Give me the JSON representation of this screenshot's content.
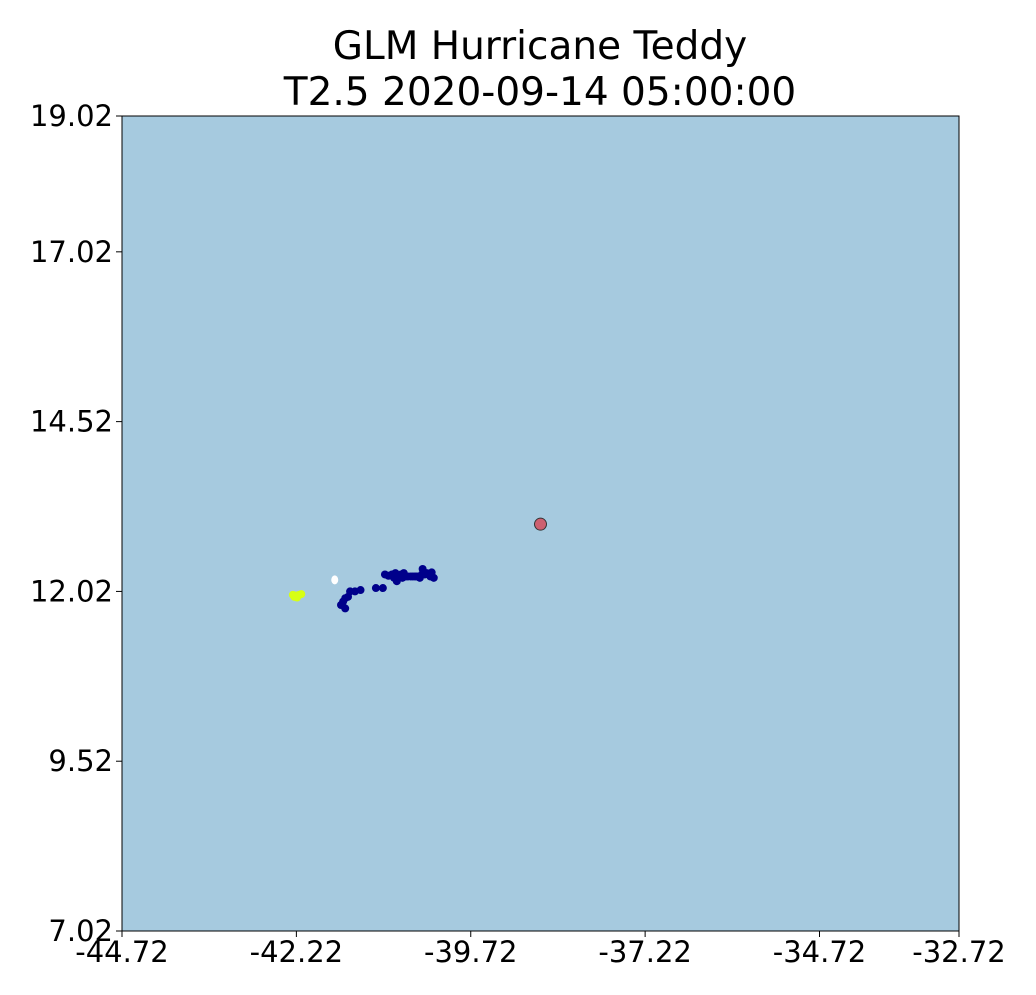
{
  "chart_data": {
    "type": "scatter",
    "title": "GLM Hurricane Teddy",
    "subtitle": "T2.5 2020-09-14 05:00:00",
    "xlabel": "",
    "ylabel": "",
    "xlim": [
      -44.72,
      -32.72
    ],
    "ylim": [
      7.02,
      19.02
    ],
    "x_ticks": [
      "-44.72",
      "-42.22",
      "-39.72",
      "-37.22",
      "-34.72",
      "-32.72"
    ],
    "y_ticks": [
      "7.02",
      "9.52",
      "12.02",
      "14.52",
      "17.02",
      "19.02"
    ],
    "grid": false,
    "background_color": "#a6cadf",
    "series": [
      {
        "color": "#00008b",
        "marker": "circle",
        "points": [
          [
            -40.95,
            12.27
          ],
          [
            -40.9,
            12.25
          ],
          [
            -40.85,
            12.27
          ],
          [
            -40.82,
            12.22
          ],
          [
            -40.8,
            12.29
          ],
          [
            -40.78,
            12.17
          ],
          [
            -40.75,
            12.24
          ],
          [
            -40.72,
            12.27
          ],
          [
            -40.7,
            12.22
          ],
          [
            -40.68,
            12.29
          ],
          [
            -40.65,
            12.24
          ],
          [
            -40.62,
            12.24
          ],
          [
            -40.58,
            12.24
          ],
          [
            -40.55,
            12.24
          ],
          [
            -40.52,
            12.24
          ],
          [
            -40.5,
            12.24
          ],
          [
            -40.47,
            12.24
          ],
          [
            -40.45,
            12.22
          ],
          [
            -40.42,
            12.27
          ],
          [
            -40.41,
            12.35
          ],
          [
            -40.38,
            12.27
          ],
          [
            -40.35,
            12.29
          ],
          [
            -40.32,
            12.27
          ],
          [
            -40.3,
            12.24
          ],
          [
            -40.28,
            12.3
          ],
          [
            -40.25,
            12.22
          ],
          [
            -41.08,
            12.07
          ],
          [
            -40.98,
            12.07
          ],
          [
            -41.3,
            12.04
          ],
          [
            -41.38,
            12.02
          ],
          [
            -41.45,
            12.02
          ],
          [
            -41.48,
            11.94
          ],
          [
            -41.52,
            11.92
          ],
          [
            -41.55,
            11.87
          ],
          [
            -41.58,
            11.82
          ],
          [
            -41.52,
            11.77
          ]
        ]
      },
      {
        "color": "#ffffff",
        "marker": "ellipse",
        "points": [
          [
            -41.67,
            12.19
          ]
        ]
      },
      {
        "color": "#d7ff14",
        "marker": "circle",
        "points": [
          [
            -42.27,
            11.97
          ],
          [
            -42.25,
            11.94
          ],
          [
            -42.22,
            11.96
          ],
          [
            -42.18,
            11.97
          ],
          [
            -42.15,
            11.98
          ],
          [
            -42.21,
            11.93
          ]
        ]
      },
      {
        "color": "#cd6070",
        "marker": "circle-outlined",
        "points": [
          [
            -38.72,
            13.01
          ]
        ]
      }
    ]
  }
}
